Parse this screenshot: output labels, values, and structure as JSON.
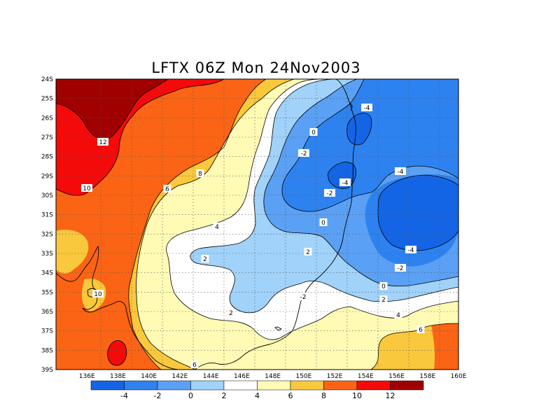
{
  "title": "LFTX 06Z Mon 24Nov2003",
  "map": {
    "x_ticks": [
      "136E",
      "138E",
      "140E",
      "142E",
      "144E",
      "146E",
      "148E",
      "150E",
      "152E",
      "154E",
      "156E",
      "158E",
      "160E"
    ],
    "y_ticks": [
      "24S",
      "25S",
      "26S",
      "27S",
      "28S",
      "29S",
      "30S",
      "31S",
      "32S",
      "33S",
      "34S",
      "35S",
      "36S",
      "37S",
      "38S",
      "39S"
    ],
    "contour_labels": [
      "-4",
      "-4",
      "-4",
      "-4",
      "-2",
      "-2",
      "-2",
      "-2",
      "0",
      "0",
      "0",
      "2",
      "2",
      "2",
      "2",
      "4",
      "4",
      "6",
      "6",
      "6",
      "8",
      "10",
      "10",
      "12"
    ]
  },
  "colorbar": {
    "labels": [
      "-4",
      "-2",
      "0",
      "2",
      "4",
      "6",
      "8",
      "10",
      "12"
    ],
    "colors": [
      "#1464e6",
      "#2d82f0",
      "#5aa0f5",
      "#a0d2fa",
      "#ffffff",
      "#fffab4",
      "#fac83c",
      "#fa6414",
      "#f50a0a",
      "#a00000"
    ]
  },
  "colors": {
    "c_m5": "#1464e6",
    "c_m3": "#2d82f0",
    "c_m1": "#5aa0f5",
    "c_1": "#a0d2fa",
    "c_3": "#ffffff",
    "c_5": "#fffab4",
    "c_7": "#fac83c",
    "c_9": "#fa6414",
    "c_11": "#f50a0a",
    "c_13": "#a00000"
  }
}
